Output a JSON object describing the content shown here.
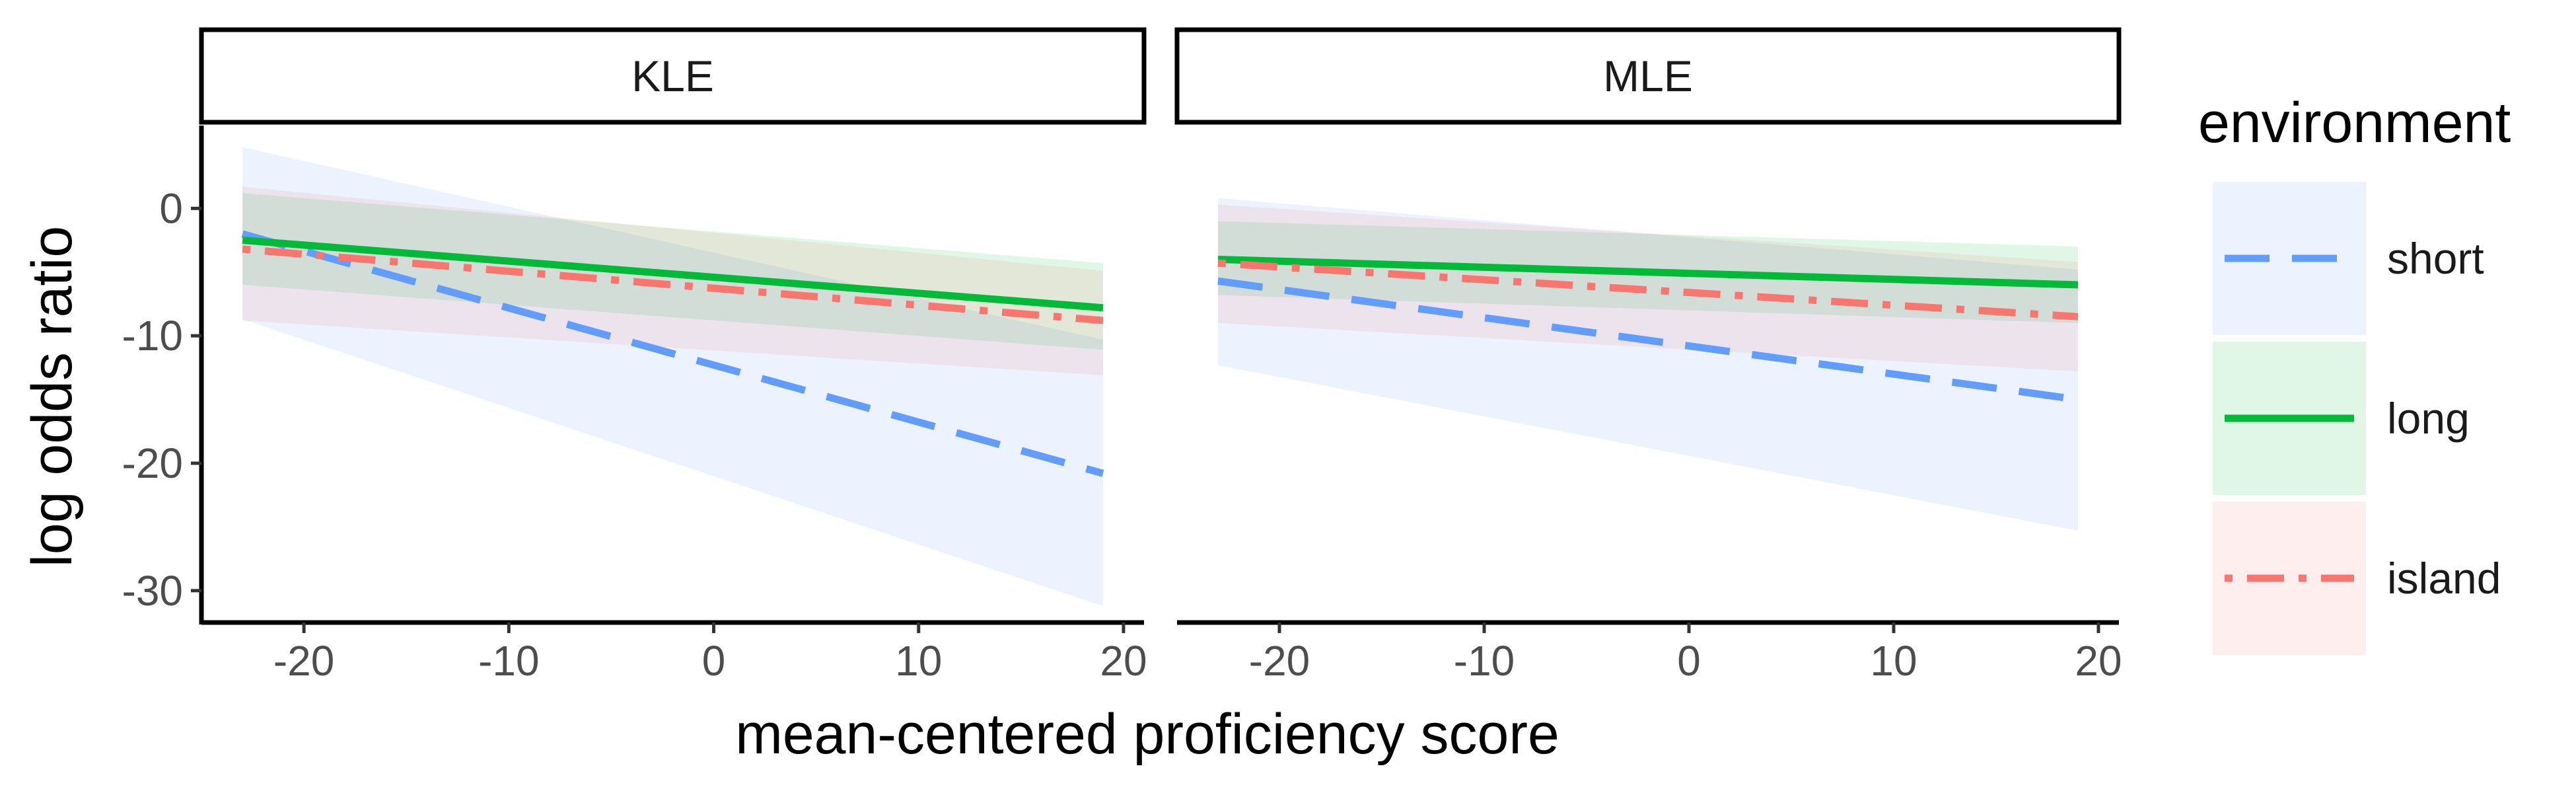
{
  "chart_data": {
    "type": "line",
    "facet_variable": "",
    "panels": [
      {
        "strip": "KLE",
        "series": [
          {
            "name": "short",
            "x": [
              -23,
              19
            ],
            "y": [
              -2,
              -20.8
            ],
            "ribbon_lower": [
              -8.7,
              -31.2
            ],
            "ribbon_upper": [
              4.8,
              -10.3
            ]
          },
          {
            "name": "long",
            "x": [
              -23,
              19
            ],
            "y": [
              -2.5,
              -7.8
            ],
            "ribbon_lower": [
              -6,
              -11.1
            ],
            "ribbon_upper": [
              1.2,
              -4.3
            ]
          },
          {
            "name": "island",
            "x": [
              -23,
              19
            ],
            "y": [
              -3.2,
              -8.8
            ],
            "ribbon_lower": [
              -8.8,
              -13.1
            ],
            "ribbon_upper": [
              1.7,
              -4.9
            ]
          }
        ]
      },
      {
        "strip": "MLE",
        "series": [
          {
            "name": "short",
            "x": [
              -23,
              19
            ],
            "y": [
              -5.7,
              -15
            ],
            "ribbon_lower": [
              -12.3,
              -25.3
            ],
            "ribbon_upper": [
              0.8,
              -4.8
            ]
          },
          {
            "name": "long",
            "x": [
              -23,
              19
            ],
            "y": [
              -4,
              -6
            ],
            "ribbon_lower": [
              -6.8,
              -9
            ],
            "ribbon_upper": [
              -1,
              -3
            ]
          },
          {
            "name": "island",
            "x": [
              -23,
              19
            ],
            "y": [
              -4.3,
              -8.5
            ],
            "ribbon_lower": [
              -9,
              -12.8
            ],
            "ribbon_upper": [
              0.3,
              -4.2
            ]
          }
        ]
      }
    ],
    "xlabel": "mean-centered proficiency score",
    "ylabel": "log odds ratio",
    "xlim": [
      -25,
      21
    ],
    "ylim": [
      -32.5,
      6.5
    ],
    "xticks": [
      -20,
      -10,
      0,
      10,
      20
    ],
    "xtick_labels": [
      "-20",
      "-10",
      "0",
      "10",
      "20"
    ],
    "yticks": [
      0,
      -10,
      -20,
      -30
    ],
    "ytick_labels": [
      "0",
      "-10",
      "-20",
      "-30"
    ],
    "grid": false,
    "legend": {
      "title": "environment",
      "placement": "right",
      "entries": [
        {
          "label": "short",
          "color": "#619CFF",
          "line_style": "longdash",
          "fill": "#619CFF"
        },
        {
          "label": "long",
          "color": "#00BA38",
          "line_style": "solid",
          "fill": "#00BA38"
        },
        {
          "label": "island",
          "color": "#F8766D",
          "line_style": "dotdash",
          "fill": "#F8766D"
        }
      ]
    }
  }
}
